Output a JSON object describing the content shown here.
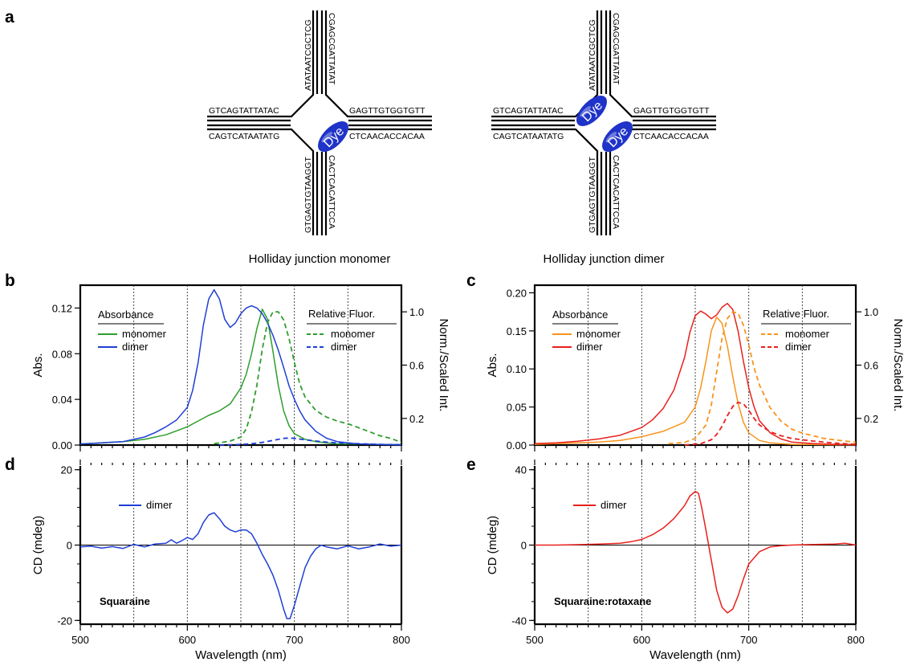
{
  "panel_labels": {
    "a": "a",
    "b": "b",
    "c": "c",
    "d": "d",
    "e": "e"
  },
  "junctions": {
    "monomer": {
      "caption": "Holliday junction monomer",
      "dye_labels": [
        "Dye"
      ],
      "sequences": {
        "top_left": "ATATAATCGCTCG",
        "top_right": "CGAGCGATTATAT",
        "left_top": "GTCAGTATTATAC",
        "left_bottom": "CAGTCATAATATG",
        "right_top": "GAGTTGTGGTGTT",
        "right_bottom": "CTCAACACCACAA",
        "bottom_left": "GTGAGTGTAAGGT",
        "bottom_right": "CACTCACATTCCA"
      }
    },
    "dimer": {
      "caption": "Holliday junction dimer",
      "dye_labels": [
        "Dye",
        "Dye"
      ],
      "sequences": {
        "top_left": "ATATAATCGCTCG",
        "top_right": "CGAGCGATTATAT",
        "left_top": "GTCAGTATTATAC",
        "left_bottom": "CAGTCATAATATG",
        "right_top": "GAGTTGTGGTGTT",
        "right_bottom": "CTCAACACCACAA",
        "bottom_left": "GTGAGTGTAAGGT",
        "bottom_right": "CACTCACATTCCA"
      }
    }
  },
  "colors": {
    "b_monomer": "#2e9e2e",
    "b_dimer": "#1f3fd6",
    "c_monomer": "#f7941d",
    "c_dimer": "#e8201c",
    "dye_fill": "#1f33c9"
  },
  "chart_data": [
    {
      "panel": "b",
      "type": "line",
      "xlim": [
        500,
        800
      ],
      "ylim": [
        0,
        0.14
      ],
      "y2lim": [
        0,
        1.2
      ],
      "ylabel": "Abs.",
      "y2label": "Norm./Scaled Int.",
      "yticks": [
        "0.00",
        "0.04",
        "0.08",
        "0.12"
      ],
      "y2ticks": [
        "0.2",
        "0.6",
        "1.0"
      ],
      "gridlines_x": [
        550,
        600,
        650,
        700,
        750
      ],
      "legend_abs_title": "Absorbance",
      "legend_fluor_title": "Relative Fluor.",
      "series": [
        {
          "name": "monomer",
          "kind": "absorbance",
          "color": "#2e9e2e",
          "dash": false,
          "x": [
            500,
            520,
            540,
            560,
            580,
            600,
            610,
            620,
            630,
            640,
            650,
            655,
            660,
            665,
            670,
            675,
            680,
            685,
            690,
            695,
            700,
            710,
            720,
            740,
            760,
            780,
            800
          ],
          "y": [
            0.001,
            0.002,
            0.003,
            0.005,
            0.009,
            0.016,
            0.021,
            0.026,
            0.03,
            0.036,
            0.05,
            0.062,
            0.08,
            0.102,
            0.119,
            0.11,
            0.082,
            0.052,
            0.03,
            0.017,
            0.01,
            0.005,
            0.003,
            0.001,
            0.001,
            0.0005,
            0.0003
          ]
        },
        {
          "name": "dimer",
          "kind": "absorbance",
          "color": "#1f3fd6",
          "dash": false,
          "x": [
            500,
            520,
            540,
            560,
            570,
            580,
            590,
            600,
            605,
            610,
            615,
            620,
            625,
            630,
            635,
            640,
            645,
            650,
            655,
            660,
            665,
            670,
            675,
            680,
            685,
            690,
            695,
            700,
            705,
            710,
            720,
            730,
            740,
            760,
            780,
            800
          ],
          "y": [
            0.001,
            0.002,
            0.003,
            0.007,
            0.011,
            0.016,
            0.022,
            0.033,
            0.048,
            0.072,
            0.105,
            0.128,
            0.136,
            0.128,
            0.11,
            0.103,
            0.107,
            0.115,
            0.12,
            0.122,
            0.12,
            0.115,
            0.107,
            0.096,
            0.083,
            0.068,
            0.052,
            0.04,
            0.03,
            0.022,
            0.012,
            0.006,
            0.003,
            0.001,
            0.0005,
            0.0003
          ]
        },
        {
          "name": "monomer",
          "kind": "fluorescence",
          "color": "#2e9e2e",
          "dash": true,
          "x": [
            625,
            640,
            650,
            655,
            660,
            665,
            670,
            675,
            680,
            685,
            690,
            695,
            700,
            705,
            710,
            720,
            730,
            740,
            750,
            760,
            770,
            780,
            790,
            800
          ],
          "y": [
            0.01,
            0.03,
            0.06,
            0.12,
            0.25,
            0.45,
            0.72,
            0.92,
            1.0,
            1.0,
            0.94,
            0.8,
            0.62,
            0.46,
            0.36,
            0.26,
            0.21,
            0.18,
            0.16,
            0.13,
            0.1,
            0.07,
            0.05,
            0.02
          ]
        },
        {
          "name": "dimer",
          "kind": "fluorescence",
          "color": "#1f3fd6",
          "dash": true,
          "x": [
            630,
            650,
            660,
            670,
            680,
            690,
            695,
            700,
            710,
            720,
            730,
            740,
            760,
            780,
            800
          ],
          "y": [
            0.0,
            0.004,
            0.01,
            0.02,
            0.035,
            0.05,
            0.053,
            0.05,
            0.04,
            0.03,
            0.022,
            0.016,
            0.01,
            0.005,
            0.002
          ]
        }
      ]
    },
    {
      "panel": "c",
      "type": "line",
      "xlim": [
        500,
        800
      ],
      "ylim": [
        0,
        0.21
      ],
      "y2lim": [
        0,
        1.2
      ],
      "ylabel": "Abs.",
      "y2label": "Norm./Scaled Int.",
      "yticks": [
        "0.00",
        "0.05",
        "0.10",
        "0.15",
        "0.20"
      ],
      "y2ticks": [
        "0.2",
        "0.6",
        "1.0"
      ],
      "gridlines_x": [
        550,
        600,
        650,
        700,
        750
      ],
      "legend_abs_title": "Absorbance",
      "legend_fluor_title": "Relative Fluor.",
      "series": [
        {
          "name": "monomer",
          "kind": "absorbance",
          "color": "#f7941d",
          "dash": false,
          "x": [
            500,
            520,
            540,
            560,
            580,
            600,
            620,
            640,
            650,
            655,
            660,
            665,
            670,
            675,
            680,
            685,
            690,
            695,
            700,
            710,
            720,
            740,
            760,
            780,
            800
          ],
          "y": [
            0.001,
            0.002,
            0.003,
            0.004,
            0.006,
            0.011,
            0.018,
            0.03,
            0.05,
            0.075,
            0.11,
            0.15,
            0.168,
            0.16,
            0.13,
            0.09,
            0.055,
            0.03,
            0.016,
            0.006,
            0.003,
            0.001,
            0.0007,
            0.0004,
            0.0002
          ]
        },
        {
          "name": "dimer",
          "kind": "absorbance",
          "color": "#e8201c",
          "dash": false,
          "x": [
            500,
            520,
            540,
            560,
            580,
            600,
            610,
            620,
            630,
            640,
            645,
            650,
            655,
            660,
            665,
            670,
            675,
            680,
            685,
            690,
            695,
            700,
            705,
            710,
            720,
            730,
            740,
            760,
            780,
            800
          ],
          "y": [
            0.002,
            0.003,
            0.005,
            0.008,
            0.013,
            0.023,
            0.033,
            0.048,
            0.072,
            0.115,
            0.148,
            0.17,
            0.176,
            0.172,
            0.166,
            0.171,
            0.181,
            0.186,
            0.178,
            0.15,
            0.11,
            0.075,
            0.05,
            0.032,
            0.016,
            0.008,
            0.004,
            0.002,
            0.001,
            0.0005
          ]
        },
        {
          "name": "monomer",
          "kind": "fluorescence",
          "color": "#f7941d",
          "dash": true,
          "x": [
            625,
            640,
            650,
            660,
            665,
            670,
            675,
            680,
            685,
            690,
            695,
            700,
            705,
            710,
            720,
            730,
            740,
            750,
            760,
            770,
            780,
            790,
            800
          ],
          "y": [
            0.01,
            0.02,
            0.05,
            0.15,
            0.3,
            0.55,
            0.8,
            0.95,
            1.0,
            0.99,
            0.9,
            0.75,
            0.58,
            0.45,
            0.28,
            0.18,
            0.12,
            0.09,
            0.07,
            0.05,
            0.04,
            0.03,
            0.02
          ]
        },
        {
          "name": "dimer",
          "kind": "fluorescence",
          "color": "#e8201c",
          "dash": true,
          "x": [
            640,
            655,
            665,
            670,
            675,
            680,
            685,
            690,
            695,
            700,
            705,
            710,
            720,
            730,
            740,
            750,
            760,
            780,
            800
          ],
          "y": [
            0.0,
            0.01,
            0.04,
            0.08,
            0.14,
            0.22,
            0.29,
            0.32,
            0.31,
            0.26,
            0.2,
            0.15,
            0.1,
            0.07,
            0.05,
            0.04,
            0.03,
            0.015,
            0.005
          ]
        }
      ]
    },
    {
      "panel": "d",
      "type": "line",
      "xlim": [
        500,
        800
      ],
      "ylim": [
        -21,
        21
      ],
      "xlabel": "Wavelength (nm)",
      "ylabel": "CD (mdeg)",
      "xticks": [
        "500",
        "600",
        "700",
        "800"
      ],
      "yticks": [
        "-20",
        "0",
        "20"
      ],
      "gridlines_x": [
        550,
        600,
        650,
        700,
        750
      ],
      "annotation": "Squaraine",
      "series": [
        {
          "name": "dimer",
          "color": "#1f3fd6",
          "dash": false,
          "x": [
            500,
            510,
            520,
            530,
            540,
            550,
            560,
            570,
            580,
            585,
            590,
            595,
            600,
            605,
            610,
            615,
            620,
            625,
            630,
            635,
            640,
            645,
            650,
            655,
            660,
            665,
            670,
            675,
            680,
            685,
            690,
            693,
            696,
            700,
            705,
            710,
            715,
            720,
            725,
            730,
            740,
            750,
            760,
            770,
            780,
            790,
            800
          ],
          "y": [
            -0.5,
            -0.3,
            -0.8,
            -0.4,
            -0.9,
            0.2,
            -0.5,
            0.3,
            0.5,
            1.4,
            0.5,
            1.2,
            2.0,
            1.5,
            3.0,
            6.0,
            8.0,
            8.6,
            7.0,
            5.0,
            4.0,
            3.5,
            4.0,
            4.0,
            3.0,
            0.5,
            -2.5,
            -5.0,
            -8.0,
            -12.0,
            -17.0,
            -19.5,
            -19.5,
            -16.0,
            -11.0,
            -6.0,
            -3.0,
            -1.0,
            0.0,
            -0.5,
            -1.0,
            -0.2,
            -1.0,
            -0.5,
            0.3,
            -0.3,
            0.0
          ]
        }
      ]
    },
    {
      "panel": "e",
      "type": "line",
      "xlim": [
        500,
        800
      ],
      "ylim": [
        -42,
        42
      ],
      "xlabel": "Wavelength (nm)",
      "ylabel": "CD (mdeg)",
      "xticks": [
        "500",
        "600",
        "700",
        "800"
      ],
      "yticks": [
        "-40",
        "0",
        "40"
      ],
      "gridlines_x": [
        550,
        600,
        650,
        700,
        750
      ],
      "annotation": "Squaraine:rotaxane",
      "series": [
        {
          "name": "dimer",
          "color": "#e8201c",
          "dash": false,
          "x": [
            500,
            520,
            540,
            560,
            580,
            590,
            600,
            610,
            620,
            630,
            640,
            645,
            650,
            653,
            656,
            660,
            665,
            670,
            675,
            680,
            685,
            690,
            695,
            700,
            710,
            720,
            730,
            740,
            760,
            780,
            790,
            800
          ],
          "y": [
            0.0,
            0.0,
            0.2,
            0.5,
            1.0,
            1.8,
            3.0,
            5.5,
            9.0,
            14.0,
            21.0,
            26.0,
            28.5,
            27.5,
            20.0,
            8.0,
            -8.0,
            -24.0,
            -33.0,
            -36.0,
            -34.0,
            -27.0,
            -18.0,
            -10.0,
            -3.5,
            -1.0,
            -0.3,
            0.0,
            0.3,
            0.5,
            1.0,
            0.0
          ]
        }
      ]
    }
  ]
}
